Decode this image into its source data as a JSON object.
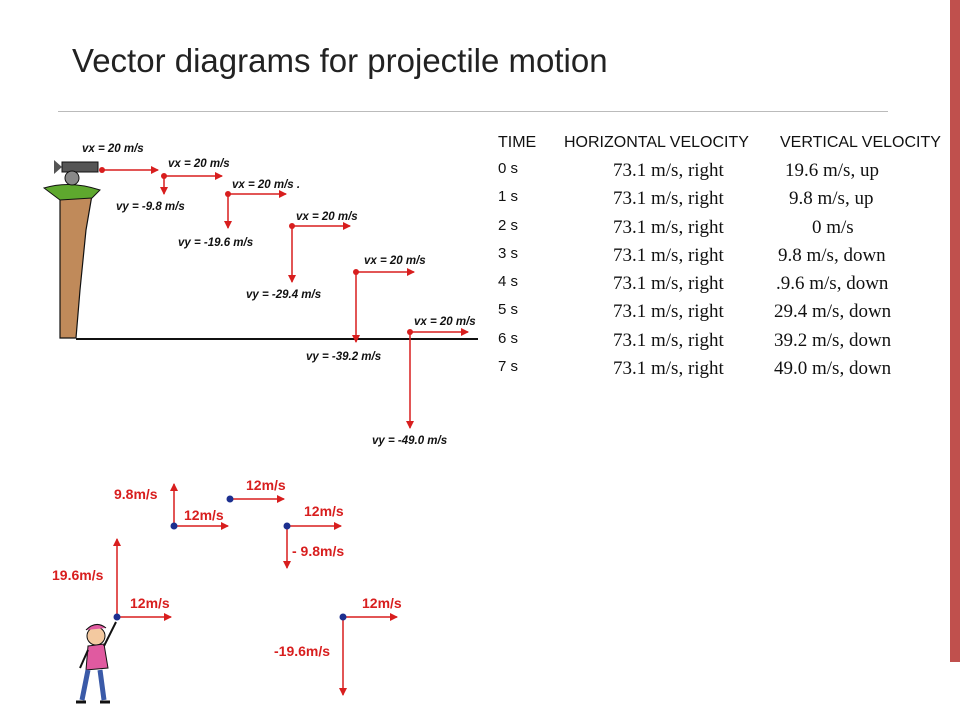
{
  "slide": {
    "title": "Vector diagrams for projectile motion",
    "accent_color": "#c0504d"
  },
  "cannon_diagram": {
    "vx_labels": [
      "vx = 20 m/s",
      "vx = 20 m/s",
      "vx = 20 m/s .",
      "vx = 20 m/s",
      "vx = 20 m/s",
      "vx = 20 m/s"
    ],
    "vy_labels": [
      "vy = -9.8 m/s",
      "vy = -19.6 m/s",
      "vy = -29.4 m/s",
      "vy = -39.2 m/s",
      "vy = -49.0 m/s"
    ]
  },
  "velocity_table": {
    "headers": {
      "time": "TIME",
      "horizontal": "HORIZONTAL VELOCITY",
      "vertical": "VERTICAL VELOCITY"
    },
    "rows": [
      {
        "time": "0 s",
        "horizontal": "73.1 m/s, right",
        "vertical": "19.6 m/s, up"
      },
      {
        "time": "1 s",
        "horizontal": "73.1 m/s, right",
        "vertical": "9.8 m/s, up"
      },
      {
        "time": "2 s",
        "horizontal": "73.1 m/s, right",
        "vertical": "0 m/s"
      },
      {
        "time": "3 s",
        "horizontal": "73.1 m/s, right",
        "vertical": "9.8 m/s, down"
      },
      {
        "time": "4 s",
        "horizontal": "73.1 m/s, right",
        "vertical": ".9.6 m/s, down"
      },
      {
        "time": "5 s",
        "horizontal": "73.1 m/s, right",
        "vertical": "29.4 m/s, down"
      },
      {
        "time": "6 s",
        "horizontal": "73.1 m/s, right",
        "vertical": "39.2 m/s, down"
      },
      {
        "time": "7 s",
        "horizontal": "73.1 m/s, right",
        "vertical": "49.0 m/s, down"
      }
    ]
  },
  "thrower_diagram": {
    "labels": {
      "vy_start": "19.6m/s",
      "vx_start": "12m/s",
      "vy_rise": "9.8m/s",
      "vx_rise": "12m/s",
      "vx_top": "12m/s",
      "vx_fall": "12m/s",
      "vy_fall": "- 9.8m/s",
      "vx_end": "12m/s",
      "vy_end": "-19.6m/s"
    }
  }
}
